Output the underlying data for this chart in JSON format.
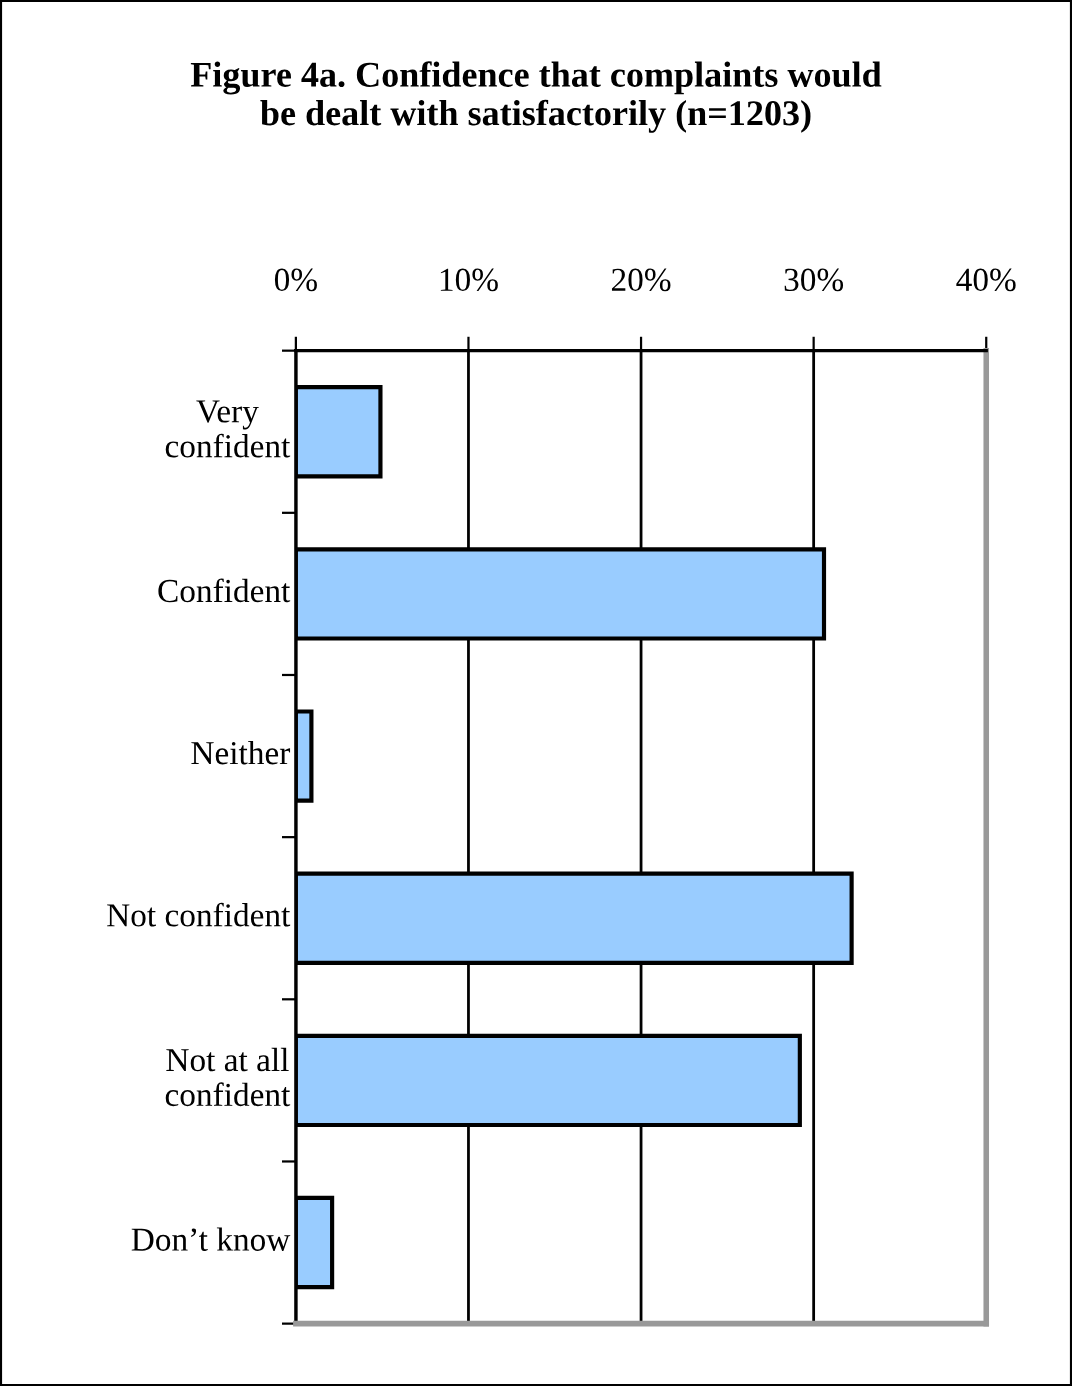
{
  "chart_data": {
    "type": "bar",
    "orientation": "horizontal",
    "title": "Figure 4a. Confidence that complaints would\nbe dealt with satisfactorily (n=1203)",
    "categories": [
      "Very\nconfident",
      "Confident",
      "Neither",
      "Not confident",
      "Not at all\nconfident",
      "Don’t know"
    ],
    "values": [
      4.9,
      30.6,
      0.9,
      32.2,
      29.2,
      2.1
    ],
    "color": "#99ccff",
    "xlim": [
      0,
      40
    ],
    "xticks": [
      {
        "value": 0,
        "label": "0%"
      },
      {
        "value": 10,
        "label": "10%"
      },
      {
        "value": 20,
        "label": "20%"
      },
      {
        "value": 30,
        "label": "30%"
      },
      {
        "value": 40,
        "label": "40%"
      }
    ],
    "grid": "x",
    "legend": false
  }
}
